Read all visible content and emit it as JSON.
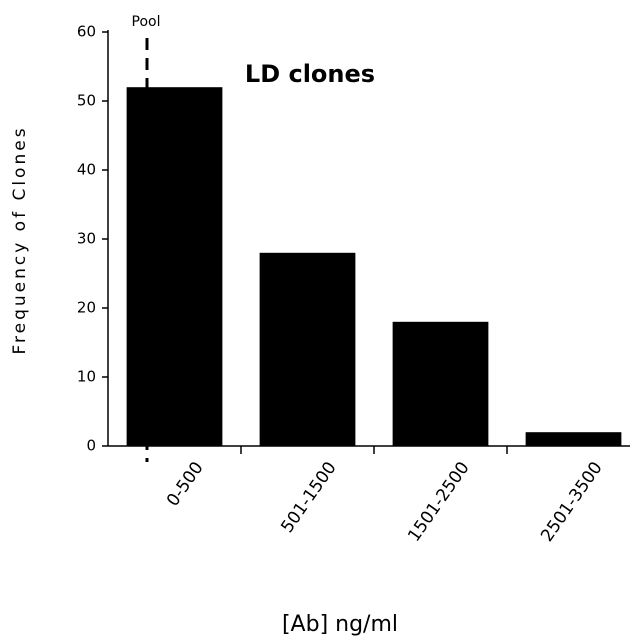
{
  "chart_data": {
    "type": "bar",
    "title": "LD clones",
    "annotation": "Pool",
    "x_label": "[Ab] ng/ml",
    "y_label": "Frequency of Clones",
    "categories": [
      "0-500",
      "501-1500",
      "1501-2500",
      "2501-3500"
    ],
    "values": [
      52,
      28,
      18,
      2
    ],
    "color": "#000000",
    "ylim": [
      0,
      60
    ],
    "yticks": [
      0,
      10,
      20,
      30,
      40,
      50,
      60
    ],
    "grid": false
  }
}
